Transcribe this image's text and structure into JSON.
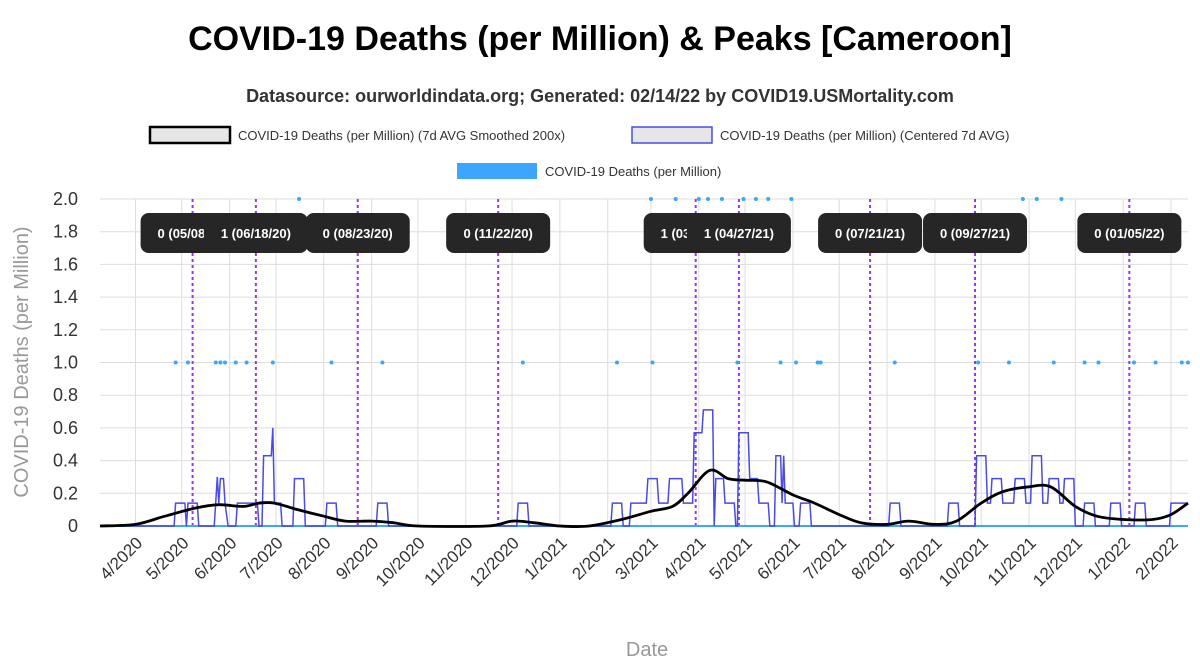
{
  "title": "COVID-19 Deaths (per Million) & Peaks [Cameroon]",
  "subtitle": "Datasource: ourworldindata.org; Generated: 02/14/22 by COVID19.USMortality.com",
  "colors": {
    "smoothed": "#000000",
    "centered": "#4a4ae8",
    "daily": "#3ba5ff",
    "peak_line": "#9b30ff",
    "peak_box": "#262626",
    "grid": "#dddddd"
  },
  "chart_data": {
    "type": "line",
    "title": "COVID-19 Deaths (per Million) & Peaks [Cameroon]",
    "xlabel": "Date",
    "ylabel": "COVID-19 Deaths (per Million)",
    "ylim": [
      0,
      2.0
    ],
    "xlim": [
      "2020-03-09",
      "2022-02-12"
    ],
    "y_ticks": [
      "0",
      "0.2",
      "0.4",
      "0.6",
      "0.8",
      "1.0",
      "1.2",
      "1.4",
      "1.6",
      "1.8",
      "2.0"
    ],
    "x_ticks": [
      "4/2020",
      "5/2020",
      "6/2020",
      "7/2020",
      "8/2020",
      "9/2020",
      "10/2020",
      "11/2020",
      "12/2020",
      "1/2021",
      "2/2021",
      "3/2021",
      "4/2021",
      "5/2021",
      "6/2021",
      "7/2021",
      "8/2021",
      "9/2021",
      "10/2021",
      "11/2021",
      "12/2021",
      "1/2022",
      "2/2022"
    ],
    "x_tick_dates": [
      "2020-04-01",
      "2020-05-01",
      "2020-06-01",
      "2020-07-01",
      "2020-08-01",
      "2020-09-01",
      "2020-10-01",
      "2020-11-01",
      "2020-12-01",
      "2021-01-01",
      "2021-02-01",
      "2021-03-01",
      "2021-04-01",
      "2021-05-01",
      "2021-06-01",
      "2021-07-01",
      "2021-08-01",
      "2021-09-01",
      "2021-10-01",
      "2021-11-01",
      "2021-12-01",
      "2022-01-01",
      "2022-02-01"
    ],
    "legend": [
      {
        "label": "COVID-19 Deaths (per Million) (7d AVG Smoothed 200x)",
        "style": "box-black"
      },
      {
        "label": "COVID-19 Deaths (per Million) (Centered 7d AVG)",
        "style": "box-blue"
      },
      {
        "label": "COVID-19 Deaths (per Million)",
        "style": "bar-lightblue"
      }
    ],
    "series": [
      {
        "name": "COVID-19 Deaths (per Million) (7d AVG Smoothed 200x)",
        "points": [
          [
            "2020-03-09",
            0
          ],
          [
            "2020-04-01",
            0.01
          ],
          [
            "2020-04-20",
            0.06
          ],
          [
            "2020-05-10",
            0.11
          ],
          [
            "2020-05-25",
            0.13
          ],
          [
            "2020-06-10",
            0.12
          ],
          [
            "2020-06-20",
            0.14
          ],
          [
            "2020-06-30",
            0.14
          ],
          [
            "2020-07-15",
            0.1
          ],
          [
            "2020-08-01",
            0.06
          ],
          [
            "2020-08-15",
            0.03
          ],
          [
            "2020-09-01",
            0.03
          ],
          [
            "2020-09-15",
            0.02
          ],
          [
            "2020-10-01",
            0
          ],
          [
            "2020-11-15",
            0
          ],
          [
            "2020-12-01",
            0.03
          ],
          [
            "2020-12-15",
            0.02
          ],
          [
            "2021-01-01",
            0
          ],
          [
            "2021-01-20",
            0
          ],
          [
            "2021-02-10",
            0.04
          ],
          [
            "2021-03-01",
            0.09
          ],
          [
            "2021-03-15",
            0.12
          ],
          [
            "2021-03-25",
            0.2
          ],
          [
            "2021-04-08",
            0.34
          ],
          [
            "2021-04-20",
            0.29
          ],
          [
            "2021-05-01",
            0.28
          ],
          [
            "2021-05-15",
            0.27
          ],
          [
            "2021-06-01",
            0.19
          ],
          [
            "2021-06-15",
            0.14
          ],
          [
            "2021-07-01",
            0.07
          ],
          [
            "2021-07-15",
            0.02
          ],
          [
            "2021-08-01",
            0.01
          ],
          [
            "2021-08-15",
            0.03
          ],
          [
            "2021-09-01",
            0.01
          ],
          [
            "2021-09-15",
            0.03
          ],
          [
            "2021-10-01",
            0.14
          ],
          [
            "2021-10-15",
            0.21
          ],
          [
            "2021-11-01",
            0.24
          ],
          [
            "2021-11-15",
            0.24
          ],
          [
            "2021-12-01",
            0.12
          ],
          [
            "2021-12-15",
            0.06
          ],
          [
            "2022-01-01",
            0.04
          ],
          [
            "2022-01-20",
            0.04
          ],
          [
            "2022-02-01",
            0.07
          ],
          [
            "2022-02-12",
            0.14
          ]
        ]
      },
      {
        "name": "COVID-19 Deaths (per Million) (Centered 7d AVG)",
        "points": [
          [
            "2020-03-09",
            0
          ],
          [
            "2020-04-10",
            0
          ],
          [
            "2020-04-26",
            0
          ],
          [
            "2020-04-27",
            0.14
          ],
          [
            "2020-05-03",
            0.14
          ],
          [
            "2020-05-04",
            0
          ],
          [
            "2020-05-05",
            0.14
          ],
          [
            "2020-05-11",
            0.14
          ],
          [
            "2020-05-12",
            0
          ],
          [
            "2020-05-22",
            0
          ],
          [
            "2020-05-23",
            0.14
          ],
          [
            "2020-05-24",
            0.3
          ],
          [
            "2020-05-25",
            0.14
          ],
          [
            "2020-05-26",
            0.29
          ],
          [
            "2020-05-28",
            0.29
          ],
          [
            "2020-05-29",
            0.14
          ],
          [
            "2020-05-31",
            0
          ],
          [
            "2020-06-05",
            0
          ],
          [
            "2020-06-06",
            0.14
          ],
          [
            "2020-06-19",
            0.14
          ],
          [
            "2020-06-20",
            0
          ],
          [
            "2020-06-22",
            0
          ],
          [
            "2020-06-23",
            0.43
          ],
          [
            "2020-06-28",
            0.43
          ],
          [
            "2020-06-29",
            0.6
          ],
          [
            "2020-06-30",
            0.14
          ],
          [
            "2020-07-04",
            0.14
          ],
          [
            "2020-07-05",
            0
          ],
          [
            "2020-07-12",
            0
          ],
          [
            "2020-07-13",
            0.29
          ],
          [
            "2020-07-19",
            0.29
          ],
          [
            "2020-07-20",
            0
          ],
          [
            "2020-08-02",
            0
          ],
          [
            "2020-08-03",
            0.14
          ],
          [
            "2020-08-09",
            0.14
          ],
          [
            "2020-08-10",
            0
          ],
          [
            "2020-09-04",
            0
          ],
          [
            "2020-09-05",
            0.14
          ],
          [
            "2020-09-11",
            0.14
          ],
          [
            "2020-09-12",
            0
          ],
          [
            "2020-12-04",
            0
          ],
          [
            "2020-12-05",
            0.14
          ],
          [
            "2020-12-11",
            0.14
          ],
          [
            "2020-12-12",
            0
          ],
          [
            "2021-02-03",
            0
          ],
          [
            "2021-02-04",
            0.14
          ],
          [
            "2021-02-10",
            0.14
          ],
          [
            "2021-02-11",
            0
          ],
          [
            "2021-02-15",
            0
          ],
          [
            "2021-02-16",
            0.14
          ],
          [
            "2021-02-26",
            0.14
          ],
          [
            "2021-02-27",
            0.29
          ],
          [
            "2021-03-05",
            0.29
          ],
          [
            "2021-03-06",
            0.14
          ],
          [
            "2021-03-12",
            0.14
          ],
          [
            "2021-03-13",
            0.29
          ],
          [
            "2021-03-21",
            0.29
          ],
          [
            "2021-03-22",
            0.14
          ],
          [
            "2021-03-28",
            0.14
          ],
          [
            "2021-03-29",
            0.57
          ],
          [
            "2021-04-03",
            0.57
          ],
          [
            "2021-04-04",
            0.71
          ],
          [
            "2021-04-10",
            0.71
          ],
          [
            "2021-04-11",
            0
          ],
          [
            "2021-04-12",
            0.29
          ],
          [
            "2021-04-17",
            0.29
          ],
          [
            "2021-04-18",
            0.14
          ],
          [
            "2021-04-24",
            0.14
          ],
          [
            "2021-04-25",
            0
          ],
          [
            "2021-04-26",
            0
          ],
          [
            "2021-04-27",
            0.57
          ],
          [
            "2021-05-03",
            0.57
          ],
          [
            "2021-05-04",
            0.29
          ],
          [
            "2021-05-09",
            0.29
          ],
          [
            "2021-05-10",
            0.14
          ],
          [
            "2021-05-16",
            0.14
          ],
          [
            "2021-05-17",
            0
          ],
          [
            "2021-05-20",
            0
          ],
          [
            "2021-05-21",
            0.43
          ],
          [
            "2021-05-24",
            0.43
          ],
          [
            "2021-05-25",
            0.14
          ],
          [
            "2021-05-26",
            0.43
          ],
          [
            "2021-05-27",
            0.14
          ],
          [
            "2021-06-01",
            0.14
          ],
          [
            "2021-06-02",
            0
          ],
          [
            "2021-06-05",
            0
          ],
          [
            "2021-06-06",
            0.14
          ],
          [
            "2021-06-12",
            0.14
          ],
          [
            "2021-06-13",
            0
          ],
          [
            "2021-08-02",
            0
          ],
          [
            "2021-08-03",
            0.14
          ],
          [
            "2021-08-09",
            0.14
          ],
          [
            "2021-08-10",
            0
          ],
          [
            "2021-09-09",
            0
          ],
          [
            "2021-09-10",
            0.14
          ],
          [
            "2021-09-16",
            0.14
          ],
          [
            "2021-09-17",
            0
          ],
          [
            "2021-09-27",
            0
          ],
          [
            "2021-09-28",
            0.43
          ],
          [
            "2021-10-04",
            0.43
          ],
          [
            "2021-10-05",
            0.14
          ],
          [
            "2021-10-07",
            0.14
          ],
          [
            "2021-10-08",
            0.29
          ],
          [
            "2021-10-14",
            0.29
          ],
          [
            "2021-10-15",
            0.14
          ],
          [
            "2021-10-22",
            0.14
          ],
          [
            "2021-10-23",
            0.29
          ],
          [
            "2021-10-29",
            0.29
          ],
          [
            "2021-10-30",
            0.14
          ],
          [
            "2021-11-02",
            0.14
          ],
          [
            "2021-11-03",
            0.43
          ],
          [
            "2021-11-09",
            0.43
          ],
          [
            "2021-11-10",
            0.14
          ],
          [
            "2021-11-13",
            0.14
          ],
          [
            "2021-11-14",
            0.29
          ],
          [
            "2021-11-20",
            0.29
          ],
          [
            "2021-11-21",
            0.14
          ],
          [
            "2021-11-23",
            0.14
          ],
          [
            "2021-11-24",
            0.29
          ],
          [
            "2021-11-30",
            0.29
          ],
          [
            "2021-12-01",
            0
          ],
          [
            "2021-12-06",
            0
          ],
          [
            "2021-12-07",
            0.14
          ],
          [
            "2021-12-13",
            0.14
          ],
          [
            "2021-12-14",
            0
          ],
          [
            "2021-12-23",
            0
          ],
          [
            "2021-12-24",
            0.14
          ],
          [
            "2021-12-30",
            0.14
          ],
          [
            "2021-12-31",
            0
          ],
          [
            "2022-01-08",
            0
          ],
          [
            "2022-01-09",
            0.14
          ],
          [
            "2022-01-15",
            0.14
          ],
          [
            "2022-01-16",
            0
          ],
          [
            "2022-01-31",
            0
          ],
          [
            "2022-02-01",
            0.14
          ],
          [
            "2022-02-12",
            0.14
          ]
        ]
      },
      {
        "name": "COVID-19 Deaths (per Million)",
        "points": [
          [
            "2020-04-27",
            1
          ],
          [
            "2020-05-05",
            1
          ],
          [
            "2020-05-23",
            1
          ],
          [
            "2020-05-26",
            1
          ],
          [
            "2020-05-29",
            1
          ],
          [
            "2020-06-05",
            1
          ],
          [
            "2020-06-12",
            1
          ],
          [
            "2020-06-29",
            1
          ],
          [
            "2020-07-16",
            2
          ],
          [
            "2020-08-06",
            1
          ],
          [
            "2020-09-08",
            1
          ],
          [
            "2020-12-08",
            1
          ],
          [
            "2021-02-07",
            1
          ],
          [
            "2021-03-02",
            1
          ],
          [
            "2021-03-01",
            2
          ],
          [
            "2021-03-17",
            2
          ],
          [
            "2021-04-01",
            2
          ],
          [
            "2021-04-07",
            2
          ],
          [
            "2021-04-16",
            2
          ],
          [
            "2021-04-26",
            1
          ],
          [
            "2021-04-30",
            2
          ],
          [
            "2021-05-08",
            2
          ],
          [
            "2021-05-16",
            2
          ],
          [
            "2021-05-24",
            1
          ],
          [
            "2021-05-31",
            2
          ],
          [
            "2021-06-03",
            1
          ],
          [
            "2021-06-17",
            1
          ],
          [
            "2021-06-19",
            1
          ],
          [
            "2021-08-06",
            1
          ],
          [
            "2021-09-29",
            1
          ],
          [
            "2021-10-19",
            1
          ],
          [
            "2021-10-28",
            2
          ],
          [
            "2021-11-06",
            2
          ],
          [
            "2021-11-17",
            1
          ],
          [
            "2021-11-22",
            2
          ],
          [
            "2021-12-07",
            1
          ],
          [
            "2021-12-16",
            1
          ],
          [
            "2022-01-08",
            1
          ],
          [
            "2022-01-22",
            1
          ],
          [
            "2022-02-08",
            1
          ],
          [
            "2022-02-12",
            1
          ]
        ]
      }
    ],
    "peaks": [
      {
        "date": "2020-05-08",
        "label": "0 (05/08/20)"
      },
      {
        "date": "2020-06-18",
        "label": "1 (06/18/20)"
      },
      {
        "date": "2020-08-23",
        "label": "0 (08/23/20)"
      },
      {
        "date": "2020-11-22",
        "label": "0 (11/22/20)"
      },
      {
        "date": "2021-03-30",
        "label": "1 (03/30/21)"
      },
      {
        "date": "2021-04-27",
        "label": "1 (04/27/21)"
      },
      {
        "date": "2021-07-21",
        "label": "0 (07/21/21)"
      },
      {
        "date": "2021-09-27",
        "label": "0 (09/27/21)"
      },
      {
        "date": "2022-01-05",
        "label": "0 (01/05/22)"
      }
    ]
  }
}
